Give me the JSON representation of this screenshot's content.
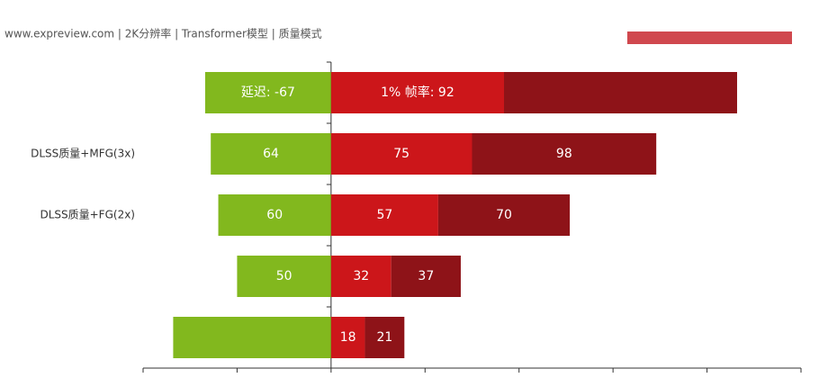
{
  "chart_data": {
    "type": "bar",
    "orientation": "horizontal",
    "stacked": true,
    "subtitle": "www.expreview.com | 2K分辨率 | Transformer模型 | 质量模式",
    "categories": [
      null,
      "DLSS质量+MFG(3x)",
      "DLSS质量+FG(2x)",
      null,
      null
    ],
    "series": [
      {
        "color": "#82b81e",
        "values": [
          -67,
          -64,
          -60,
          -50,
          -84
        ],
        "value_labels": [
          "延迟: -67",
          "64",
          "60",
          "50",
          null
        ]
      },
      {
        "color": "#cc161a",
        "values": [
          92,
          75,
          57,
          32,
          18
        ],
        "value_labels": [
          "1% 帧率: 92",
          "75",
          "57",
          "32",
          "18"
        ]
      },
      {
        "color": "#8e1318",
        "values": [
          124,
          98,
          70,
          37,
          21
        ],
        "value_labels": [
          null,
          "98",
          "70",
          "37",
          "21"
        ]
      }
    ],
    "xlim": [
      -100,
      250
    ],
    "xticks": [
      -100,
      -50,
      0,
      50,
      100,
      150,
      200,
      250
    ]
  }
}
